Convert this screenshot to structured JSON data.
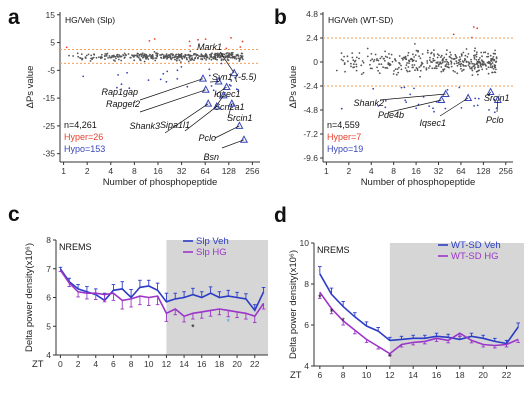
{
  "chart_data": [
    {
      "panel": "a",
      "type": "scatter",
      "title": "HG/Veh (Slp)",
      "xlabel": "Number of phosphopeptide",
      "ylabel": "ΔPs value",
      "x_scale": "log2",
      "xlim": [
        0.9,
        320
      ],
      "ylim": [
        -38,
        16
      ],
      "xticks": [
        1,
        2,
        4,
        8,
        16,
        32,
        64,
        128,
        256
      ],
      "xtick_labels": [
        "1",
        "2",
        "4",
        "8",
        "16",
        "32",
        "64",
        "128",
        "256"
      ],
      "yticks": [
        15,
        5,
        -5,
        -15,
        -25,
        -35
      ],
      "threshold_lines": [
        2.5,
        -2.5
      ],
      "stats": [
        "n=4,261",
        "Hyper=26",
        "Hypo=153"
      ],
      "stat_colors": [
        "#111111",
        "#e8402d",
        "#3747b8"
      ],
      "highlighted": [
        {
          "label": "Mark1",
          "x": 150,
          "y": -6
        },
        {
          "label": "Rap1gap",
          "x": 60,
          "y": -8
        },
        {
          "label": "Rapgef2",
          "x": 65,
          "y": -12
        },
        {
          "label": "Syn1 (-5.5)",
          "x": 95,
          "y": -9
        },
        {
          "label": "Iqsec1",
          "x": 120,
          "y": -11
        },
        {
          "label": "Shank3",
          "x": 70,
          "y": -17
        },
        {
          "label": "Scn2a1",
          "x": 110,
          "y": -14
        },
        {
          "label": "Sipa1l1",
          "x": 90,
          "y": -18
        },
        {
          "label": "Srcin1",
          "x": 140,
          "y": -17
        },
        {
          "label": "Pclo",
          "x": 175,
          "y": -25
        },
        {
          "label": "Bsn",
          "x": 200,
          "y": -30
        }
      ]
    },
    {
      "panel": "b",
      "type": "scatter",
      "title": "HG/Veh (WT-SD)",
      "xlabel": "Number of phosphopeptide",
      "ylabel": "ΔPs value",
      "x_scale": "log2",
      "xlim": [
        0.9,
        320
      ],
      "ylim": [
        -10,
        5
      ],
      "xticks": [
        1,
        2,
        4,
        8,
        16,
        32,
        64,
        128,
        256
      ],
      "xtick_labels": [
        "1",
        "2",
        "4",
        "8",
        "16",
        "32",
        "64",
        "128",
        "256"
      ],
      "yticks": [
        4.8,
        2.4,
        0,
        -2.4,
        -4.8,
        -7.2,
        -9.6
      ],
      "ytick_labels": [
        "4.8",
        "2.4",
        "0",
        "-2.4",
        "-4.8",
        "-7.2",
        "-9.6"
      ],
      "threshold_lines": [
        2.4,
        -2.4
      ],
      "stats": [
        "n=4,559",
        "Hyper=7",
        "Hypo=19"
      ],
      "stat_colors": [
        "#111111",
        "#e8402d",
        "#3747b8"
      ],
      "highlighted": [
        {
          "label": "Shank2",
          "x": 40,
          "y": -3.2
        },
        {
          "label": "Pde4b",
          "x": 35,
          "y": -3.8
        },
        {
          "label": "Iqsec1",
          "x": 80,
          "y": -3.6
        },
        {
          "label": "Srcin1",
          "x": 160,
          "y": -3.0
        },
        {
          "label": "Pclo",
          "x": 200,
          "y": -3.8
        }
      ]
    },
    {
      "panel": "c",
      "type": "line",
      "title": "NREMS",
      "xlabel": "ZT",
      "ylabel": "Delta power density(x10⁶)",
      "xlim": [
        -0.5,
        23.5
      ],
      "ylim": [
        4,
        8
      ],
      "xticks": [
        0,
        2,
        4,
        6,
        8,
        10,
        12,
        14,
        16,
        18,
        20,
        22
      ],
      "yticks": [
        4,
        5,
        6,
        7,
        8
      ],
      "dark_phase": [
        12,
        23.5
      ],
      "significance": [
        {
          "x": 15,
          "y": 4.85,
          "text": "*",
          "color": "#111111"
        },
        {
          "x": 19,
          "y": 5.05,
          "text": "*",
          "color": "#4aa6d6"
        }
      ],
      "x": [
        0,
        1,
        2,
        3,
        4,
        5,
        6,
        7,
        8,
        9,
        10,
        11,
        12,
        13,
        14,
        15,
        16,
        17,
        18,
        19,
        20,
        21,
        22,
        23
      ],
      "series": [
        {
          "name": "Slp Veh",
          "color": "#2b3cc6",
          "values": [
            7.0,
            6.55,
            6.3,
            6.2,
            6.1,
            5.9,
            6.25,
            6.3,
            6.0,
            6.35,
            6.4,
            6.25,
            5.85,
            5.95,
            6.0,
            6.1,
            6.0,
            6.15,
            6.0,
            6.05,
            6.0,
            5.95,
            5.55,
            6.2
          ],
          "errors": [
            0.05,
            0.12,
            0.15,
            0.18,
            0.2,
            0.25,
            0.2,
            0.25,
            0.28,
            0.25,
            0.2,
            0.25,
            0.3,
            0.2,
            0.2,
            0.22,
            0.2,
            0.22,
            0.2,
            0.2,
            0.18,
            0.18,
            0.2,
            0.15
          ]
        },
        {
          "name": "Slp HG",
          "color": "#9b36c9",
          "values": [
            6.95,
            6.5,
            6.2,
            6.15,
            6.15,
            6.1,
            6.15,
            5.9,
            5.95,
            6.05,
            6.0,
            6.05,
            5.45,
            5.6,
            5.35,
            5.45,
            5.5,
            5.55,
            5.6,
            5.55,
            5.5,
            5.45,
            5.35,
            5.8
          ],
          "errors": [
            0.05,
            0.12,
            0.18,
            0.2,
            0.22,
            0.25,
            0.25,
            0.3,
            0.28,
            0.3,
            0.28,
            0.3,
            0.28,
            0.2,
            0.2,
            0.2,
            0.22,
            0.2,
            0.2,
            0.22,
            0.2,
            0.2,
            0.22,
            0.2
          ]
        }
      ]
    },
    {
      "panel": "d",
      "type": "line",
      "title": "NREMS",
      "xlabel": "ZT",
      "ylabel": "Delta power density(x10⁶)",
      "xlim": [
        5.5,
        23.5
      ],
      "ylim": [
        4,
        10
      ],
      "xticks": [
        6,
        8,
        10,
        12,
        14,
        16,
        18,
        20,
        22
      ],
      "yticks": [
        4,
        6,
        8,
        10
      ],
      "dark_phase": [
        12,
        23.5
      ],
      "significance": [
        {
          "x": 6,
          "y": 7.2,
          "text": "*",
          "color": "#111111"
        },
        {
          "x": 7,
          "y": 6.5,
          "text": "*",
          "color": "#111111"
        },
        {
          "x": 8,
          "y": 6.05,
          "text": "*",
          "color": "#111111"
        },
        {
          "x": 12,
          "y": 4.3,
          "text": "*",
          "color": "#111111"
        }
      ],
      "x": [
        6,
        7,
        8,
        9,
        10,
        11,
        12,
        13,
        14,
        15,
        16,
        17,
        18,
        19,
        20,
        21,
        22,
        23
      ],
      "series": [
        {
          "name": "WT-SD Veh",
          "color": "#2b3cc6",
          "values": [
            8.5,
            7.5,
            6.9,
            6.4,
            5.95,
            5.7,
            5.25,
            5.3,
            5.35,
            5.35,
            5.45,
            5.4,
            5.3,
            5.45,
            5.35,
            5.2,
            5.1,
            5.9
          ],
          "errors": [
            0.35,
            0.3,
            0.25,
            0.2,
            0.2,
            0.18,
            0.15,
            0.15,
            0.15,
            0.15,
            0.15,
            0.15,
            0.15,
            0.15,
            0.15,
            0.15,
            0.15,
            0.2
          ]
        },
        {
          "name": "WT-SD HG",
          "color": "#9b36c9",
          "values": [
            7.6,
            6.8,
            6.2,
            5.75,
            5.3,
            4.95,
            4.6,
            5.05,
            5.15,
            5.2,
            5.35,
            5.25,
            5.6,
            5.25,
            5.05,
            5.0,
            5.05,
            5.3
          ],
          "errors": [
            0.3,
            0.25,
            0.2,
            0.18,
            0.15,
            0.12,
            0.1,
            0.12,
            0.12,
            0.12,
            0.15,
            0.12,
            0.15,
            0.12,
            0.12,
            0.12,
            0.12,
            0.15
          ]
        }
      ]
    }
  ],
  "colors": {
    "hyper": "#e8402d",
    "hypo": "#3747b8",
    "neutral": "#555555",
    "threshold": "#f2a05a",
    "dark_phase": "#d6d6d6"
  }
}
